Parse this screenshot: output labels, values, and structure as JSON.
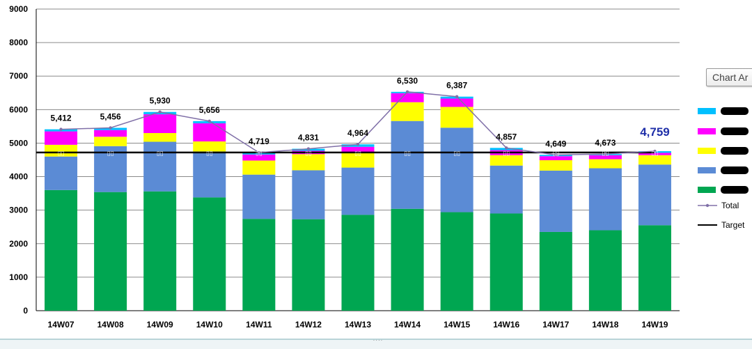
{
  "chart_data": {
    "type": "bar",
    "stacked": true,
    "categories": [
      "14W07",
      "14W08",
      "14W09",
      "14W10",
      "14W11",
      "14W12",
      "14W13",
      "14W14",
      "14W15",
      "14W16",
      "14W17",
      "14W18",
      "14W19"
    ],
    "ylim": [
      0,
      9000
    ],
    "yticks": [
      "0",
      "1000",
      "2000",
      "3000",
      "4000",
      "5000",
      "6000",
      "7000",
      "8000",
      "9000"
    ],
    "grid": true,
    "legend_position": "right",
    "series": [
      {
        "name": "",
        "color": "#00a651",
        "values": [
          3600,
          3540,
          3560,
          3380,
          2740,
          2730,
          2860,
          3040,
          2940,
          2900,
          2350,
          2400,
          2550
        ]
      },
      {
        "name": "",
        "color": "#5b8bd5",
        "values": [
          1000,
          1370,
          1480,
          1370,
          1320,
          1460,
          1410,
          2620,
          2520,
          1430,
          1830,
          1850,
          1810
        ]
      },
      {
        "name": "",
        "color": "#ffff00",
        "values": [
          350,
          280,
          260,
          300,
          420,
          480,
          440,
          560,
          620,
          310,
          310,
          270,
          280
        ]
      },
      {
        "name": "",
        "color": "#ff00ff",
        "values": [
          400,
          200,
          560,
          540,
          180,
          100,
          180,
          270,
          250,
          150,
          120,
          120,
          70
        ]
      },
      {
        "name": "",
        "color": "#00c0ff",
        "values": [
          62,
          66,
          70,
          66,
          59,
          61,
          74,
          40,
          57,
          67,
          39,
          33,
          49
        ]
      }
    ],
    "total": {
      "name": "Total",
      "color": "#8070a8",
      "values": [
        5412,
        5456,
        5930,
        5656,
        4719,
        4831,
        4964,
        6530,
        6387,
        4857,
        4649,
        4673,
        4759
      ],
      "labels": [
        "5,412",
        "5,456",
        "5,930",
        "5,656",
        "4,719",
        "4,831",
        "4,964",
        "6,530",
        "6,387",
        "4,857",
        "4,649",
        "4,673",
        "4,759"
      ]
    },
    "target": {
      "name": "Target",
      "color": "#000000",
      "value": 4720
    }
  },
  "legend": {
    "total_label": "Total",
    "target_label": "Target"
  },
  "tooltip": {
    "label": "Chart Ar"
  },
  "status": {
    "grip": "····"
  }
}
